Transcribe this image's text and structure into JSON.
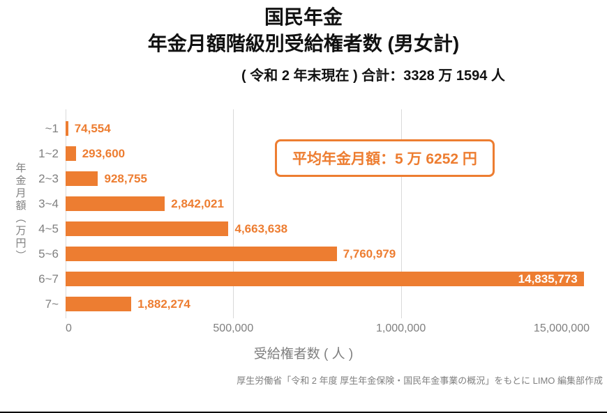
{
  "chart_data": {
    "type": "bar",
    "orientation": "horizontal",
    "title": "国民年金",
    "subtitle": "年金月額階級別受給権者数 (男女計)",
    "caption": "( 令和 2 年末現在 ) 合計：3328 万 1594 人",
    "categories": [
      "~1",
      "1~2",
      "2~3",
      "3~4",
      "4~5",
      "5~6",
      "6~7",
      "7~"
    ],
    "values": [
      74554,
      293600,
      928755,
      2842021,
      4663638,
      7760979,
      14835773,
      1882274
    ],
    "value_labels": [
      "74,554",
      "293,600",
      "928,755",
      "2,842,021",
      "4,663,638",
      "7,760,979",
      "14,835,773",
      "1,882,274"
    ],
    "xlabel": "受給権者数 ( 人 )",
    "ylabel": "年金月額（万円）",
    "xlim": [
      0,
      15000000
    ],
    "x_ticks": [
      {
        "label": "0",
        "pos": 0,
        "align": "left"
      },
      {
        "label": "500,000",
        "pos": 32,
        "align": "center"
      },
      {
        "label": "1,000,000",
        "pos": 64,
        "align": "center"
      },
      {
        "label": "15,000,000",
        "pos": 100,
        "align": "right"
      }
    ],
    "grid_positions": [
      32,
      64
    ],
    "grid": "vertical light-gray gridlines",
    "legend": "none",
    "annotation": "平均年金月額：5 万 6252 円",
    "bar_color": "#ED7D31",
    "label_color": "#ED7D31",
    "axis_text_color": "#7f7f7f",
    "source": "厚生労働省「令和 2 年度 厚生年金保険・国民年金事業の概況」をもとに LIMO 編集部作成"
  }
}
